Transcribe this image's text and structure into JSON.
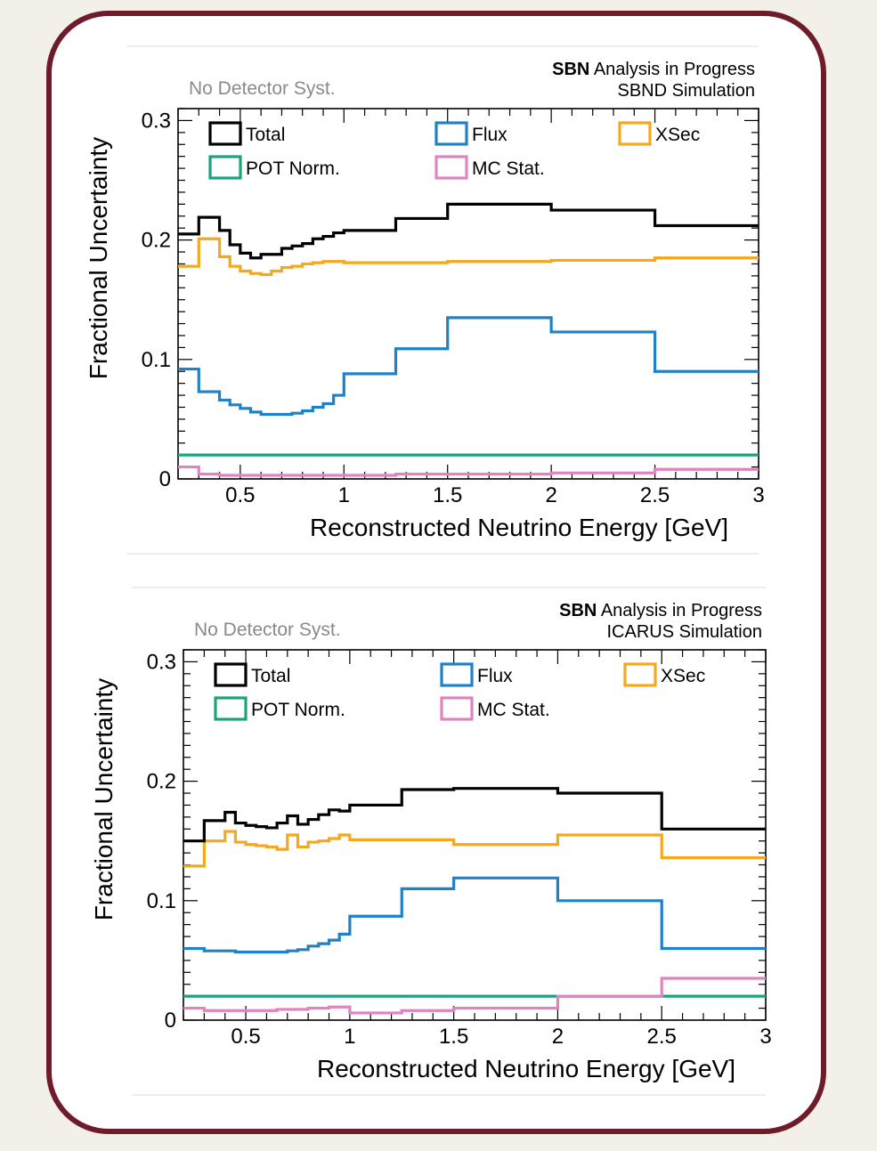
{
  "colors": {
    "frame": "#6e1c2a",
    "Total": "#000000",
    "Flux": "#1f82c6",
    "XSec": "#f4a81d",
    "POT Norm.": "#1aa37c",
    "MC Stat.": "#de85bf"
  },
  "chart_data": [
    {
      "type": "line",
      "step": true,
      "experiment_label": "SBND Simulation",
      "header_bold": "SBN",
      "header_rest": " Analysis in Progress",
      "note": "No Detector Syst.",
      "xlabel": "Reconstructed Neutrino Energy [GeV]",
      "ylabel": "Fractional Uncertainty",
      "xlim": [
        0.2,
        3.0
      ],
      "ylim": [
        0,
        0.31
      ],
      "xticks": [
        0.5,
        1,
        1.5,
        2,
        2.5,
        3
      ],
      "xtick_labels": [
        "0.5",
        "1",
        "1.5",
        "2",
        "2.5",
        "3"
      ],
      "yticks": [
        0,
        0.1,
        0.2,
        0.3
      ],
      "ytick_labels": [
        "0",
        "0.1",
        "0.2",
        "0.3"
      ],
      "bin_edges": [
        0.2,
        0.3,
        0.4,
        0.45,
        0.5,
        0.55,
        0.6,
        0.65,
        0.7,
        0.75,
        0.8,
        0.85,
        0.9,
        0.95,
        1.0,
        1.25,
        1.5,
        2.0,
        2.5,
        3.0
      ],
      "series": [
        {
          "name": "Total",
          "values": [
            0.205,
            0.219,
            0.208,
            0.196,
            0.189,
            0.185,
            0.188,
            0.188,
            0.193,
            0.195,
            0.197,
            0.201,
            0.203,
            0.206,
            0.208,
            0.218,
            0.23,
            0.225,
            0.212
          ]
        },
        {
          "name": "Flux",
          "values": [
            0.092,
            0.073,
            0.066,
            0.062,
            0.059,
            0.056,
            0.054,
            0.054,
            0.054,
            0.055,
            0.057,
            0.06,
            0.063,
            0.07,
            0.088,
            0.109,
            0.135,
            0.123,
            0.09
          ]
        },
        {
          "name": "XSec",
          "values": [
            0.178,
            0.201,
            0.186,
            0.178,
            0.174,
            0.172,
            0.171,
            0.174,
            0.177,
            0.178,
            0.18,
            0.181,
            0.182,
            0.182,
            0.181,
            0.181,
            0.182,
            0.183,
            0.185
          ]
        },
        {
          "name": "POT Norm.",
          "values": [
            0.02,
            0.02,
            0.02,
            0.02,
            0.02,
            0.02,
            0.02,
            0.02,
            0.02,
            0.02,
            0.02,
            0.02,
            0.02,
            0.02,
            0.02,
            0.02,
            0.02,
            0.02,
            0.02
          ]
        },
        {
          "name": "MC Stat.",
          "values": [
            0.01,
            0.004,
            0.003,
            0.003,
            0.003,
            0.003,
            0.003,
            0.003,
            0.003,
            0.003,
            0.003,
            0.003,
            0.003,
            0.003,
            0.003,
            0.004,
            0.004,
            0.005,
            0.008
          ]
        }
      ]
    },
    {
      "type": "line",
      "step": true,
      "experiment_label": "ICARUS Simulation",
      "header_bold": "SBN",
      "header_rest": " Analysis in Progress",
      "note": "No Detector Syst.",
      "xlabel": "Reconstructed Neutrino Energy [GeV]",
      "ylabel": "Fractional Uncertainty",
      "xlim": [
        0.2,
        3.0
      ],
      "ylim": [
        0,
        0.31
      ],
      "xticks": [
        0.5,
        1,
        1.5,
        2,
        2.5,
        3
      ],
      "xtick_labels": [
        "0.5",
        "1",
        "1.5",
        "2",
        "2.5",
        "3"
      ],
      "yticks": [
        0,
        0.1,
        0.2,
        0.3
      ],
      "ytick_labels": [
        "0",
        "0.1",
        "0.2",
        "0.3"
      ],
      "bin_edges": [
        0.2,
        0.3,
        0.4,
        0.45,
        0.5,
        0.55,
        0.6,
        0.65,
        0.7,
        0.75,
        0.8,
        0.85,
        0.9,
        0.95,
        1.0,
        1.25,
        1.5,
        2.0,
        2.5,
        3.0
      ],
      "series": [
        {
          "name": "Total",
          "values": [
            0.15,
            0.167,
            0.174,
            0.165,
            0.163,
            0.162,
            0.161,
            0.165,
            0.171,
            0.164,
            0.168,
            0.172,
            0.176,
            0.175,
            0.18,
            0.193,
            0.194,
            0.19,
            0.16
          ]
        },
        {
          "name": "Flux",
          "values": [
            0.06,
            0.058,
            0.058,
            0.057,
            0.057,
            0.057,
            0.057,
            0.057,
            0.058,
            0.059,
            0.062,
            0.064,
            0.067,
            0.072,
            0.087,
            0.11,
            0.119,
            0.1,
            0.06
          ]
        },
        {
          "name": "XSec",
          "values": [
            0.129,
            0.15,
            0.158,
            0.149,
            0.147,
            0.146,
            0.145,
            0.143,
            0.155,
            0.145,
            0.149,
            0.15,
            0.152,
            0.155,
            0.151,
            0.151,
            0.147,
            0.155,
            0.136
          ]
        },
        {
          "name": "POT Norm.",
          "values": [
            0.02,
            0.02,
            0.02,
            0.02,
            0.02,
            0.02,
            0.02,
            0.02,
            0.02,
            0.02,
            0.02,
            0.02,
            0.02,
            0.02,
            0.02,
            0.02,
            0.02,
            0.02,
            0.02
          ]
        },
        {
          "name": "MC Stat.",
          "values": [
            0.01,
            0.008,
            0.008,
            0.008,
            0.008,
            0.008,
            0.008,
            0.009,
            0.009,
            0.009,
            0.01,
            0.01,
            0.011,
            0.011,
            0.006,
            0.008,
            0.01,
            0.02,
            0.035
          ]
        }
      ]
    }
  ]
}
